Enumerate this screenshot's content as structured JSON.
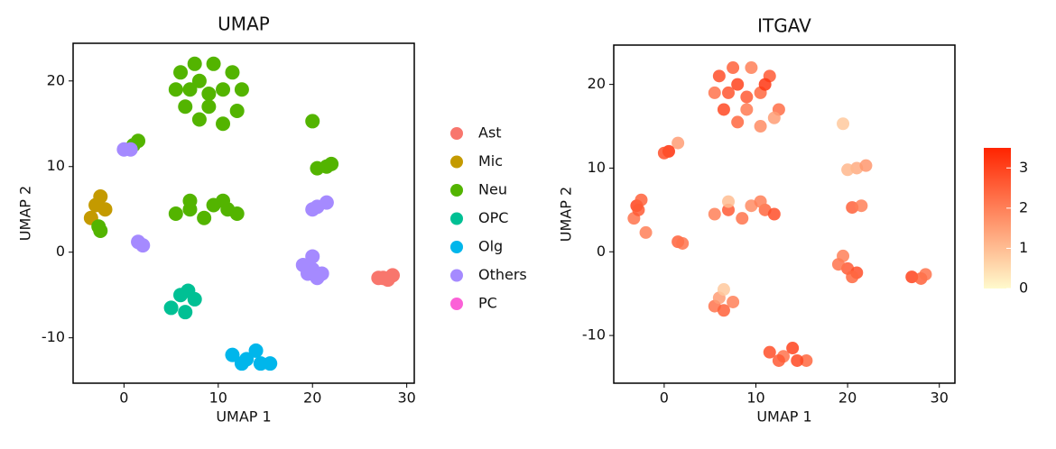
{
  "chart_data": [
    {
      "type": "scatter",
      "title": "UMAP",
      "xlabel": "UMAP 1",
      "ylabel": "UMAP 2",
      "xlim": [
        -5.4,
        30.8
      ],
      "ylim": [
        -15.3,
        24.4
      ],
      "xticks": [
        0,
        10,
        20,
        30
      ],
      "yticks": [
        -10,
        0,
        10,
        20
      ],
      "series": [
        {
          "name": "Ast",
          "color": "#F8766D",
          "x": [
            27,
            28,
            28.5,
            27.5
          ],
          "y": [
            -3,
            -3.2,
            -2.7,
            -3
          ]
        },
        {
          "name": "Mic",
          "color": "#C49A00",
          "x": [
            -3,
            -2.5,
            -3.5,
            -2
          ],
          "y": [
            5.5,
            6.5,
            4,
            5
          ]
        },
        {
          "name": "Neu",
          "color": "#53B400",
          "x": [
            5.5,
            6,
            7.5,
            9.5,
            11.5,
            12.5,
            12,
            10.5,
            8,
            6.5,
            9,
            8,
            10.5,
            9,
            7,
            5.5,
            7,
            8.5,
            9.5,
            11,
            12,
            10.5,
            7,
            20,
            21.5,
            20.5,
            22,
            1.5,
            1,
            -2.5,
            -2.7
          ],
          "y": [
            19,
            21,
            22,
            22,
            21,
            19,
            16.5,
            15,
            15.5,
            17,
            18.5,
            20,
            19,
            17,
            19,
            4.5,
            5,
            4,
            5.5,
            5,
            4.5,
            6,
            6,
            15.3,
            10,
            9.8,
            10.3,
            13,
            12.5,
            2.5,
            3
          ]
        },
        {
          "name": "OPC",
          "color": "#00C094",
          "x": [
            5,
            6.5,
            7.5,
            6,
            6.8
          ],
          "y": [
            -6.5,
            -7,
            -5.5,
            -5,
            -4.5
          ]
        },
        {
          "name": "Olg",
          "color": "#00B6EB",
          "x": [
            11.5,
            13,
            14,
            15.5,
            12.5,
            14.5
          ],
          "y": [
            -12,
            -12.5,
            -11.5,
            -13,
            -13,
            -13
          ]
        },
        {
          "name": "Others",
          "color": "#A58AFF",
          "x": [
            0,
            0.7,
            20,
            19,
            21,
            20,
            20.5,
            19.5,
            20.5,
            21.5,
            20,
            1.5,
            2
          ],
          "y": [
            12,
            12,
            -2,
            -1.5,
            -2.5,
            -0.5,
            -3,
            -2.5,
            5.3,
            5.8,
            5,
            1.2,
            0.8
          ]
        },
        {
          "name": "PC",
          "color": "#FB61D7",
          "x": [],
          "y": []
        }
      ]
    },
    {
      "type": "scatter",
      "title": "ITGAV",
      "xlabel": "UMAP 1",
      "ylabel": "UMAP 2",
      "xlim": [
        -5.5,
        31.7
      ],
      "ylim": [
        -15.7,
        24.7
      ],
      "xticks": [
        0,
        10,
        20,
        30
      ],
      "yticks": [
        -10,
        0,
        10,
        20
      ],
      "colors": [
        "#FFFACD",
        "#FF2400"
      ],
      "clim": [
        0,
        3.5
      ],
      "cticks": [
        0,
        1,
        2,
        3
      ],
      "x": [
        5.5,
        6,
        7.5,
        9.5,
        11.5,
        12.5,
        12,
        10.5,
        8,
        6.5,
        9,
        8,
        10.5,
        9,
        7,
        11,
        5.5,
        7,
        8.5,
        9.5,
        11,
        12,
        10.5,
        7,
        19.5,
        21,
        20,
        22,
        1.5,
        0.5,
        0,
        -3,
        -2.5,
        -3.3,
        -2.8,
        -2,
        1.5,
        2,
        5.5,
        6.5,
        7.5,
        6,
        6.5,
        11.5,
        13,
        14,
        15.5,
        12.5,
        14.5,
        20,
        19,
        21,
        19.5,
        20.5,
        20.5,
        21.5,
        27,
        28,
        28.5
      ],
      "y": [
        19,
        21,
        22,
        22,
        21,
        17,
        16,
        15,
        15.5,
        17,
        18.5,
        20,
        19,
        17,
        19,
        20,
        4.5,
        5,
        4,
        5.5,
        5,
        4.5,
        6,
        6,
        15.3,
        10,
        9.8,
        10.3,
        13,
        12,
        11.8,
        5.5,
        6.2,
        4,
        5,
        2.3,
        1.2,
        1,
        -6.5,
        -7,
        -6,
        -5.5,
        -4.5,
        -12,
        -12.5,
        -11.5,
        -13,
        -13,
        -13,
        -2,
        -1.5,
        -2.5,
        -0.5,
        -3,
        5.3,
        5.5,
        -3,
        -3.2,
        -2.7
      ],
      "values": [
        2.2,
        2.8,
        2.5,
        2.0,
        2.6,
        2.3,
        1.5,
        1.8,
        2.4,
        2.9,
        2.6,
        3.0,
        2.4,
        2.1,
        2.7,
        3.2,
        2.0,
        2.6,
        2.2,
        1.8,
        2.4,
        2.8,
        2.0,
        1.0,
        0.8,
        1.3,
        1.1,
        1.6,
        1.5,
        3.3,
        2.8,
        3.0,
        2.5,
        2.2,
        2.6,
        2.0,
        2.5,
        2.2,
        2.2,
        2.5,
        2.0,
        1.5,
        0.8,
        2.8,
        2.2,
        3.0,
        2.4,
        2.6,
        2.9,
        2.6,
        2.2,
        2.8,
        2.0,
        2.4,
        2.5,
        2.0,
        3.0,
        2.5,
        2.2
      ]
    }
  ]
}
